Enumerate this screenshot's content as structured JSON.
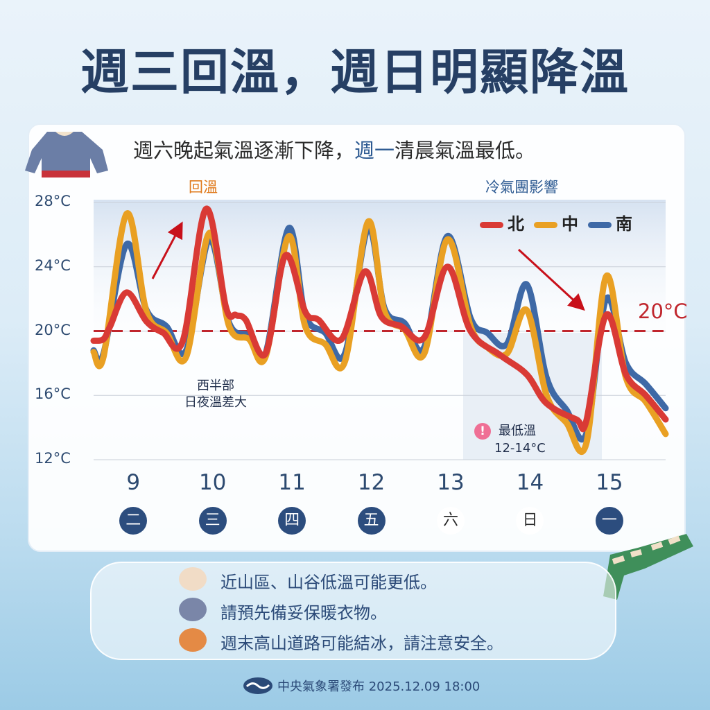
{
  "title": "週三回溫，週日明顯降溫",
  "subtitle": {
    "part1": "週六晚起氣溫逐漸下降，",
    "highlight": "週一",
    "part2": "清晨氣溫最低。"
  },
  "tags": {
    "warm": "回溫",
    "cold": "冷氣團影響"
  },
  "notes": {
    "west_line1": "西半部",
    "west_line2": "日夜溫差大",
    "low_title": "最低溫",
    "low_range": "12-14°C",
    "warn_symbol": "!"
  },
  "tips": [
    {
      "icon": "cup-icon",
      "text": "近山區、山谷低溫可能更低。"
    },
    {
      "icon": "beanie-icon",
      "text": "請預先備妥保暖衣物。"
    },
    {
      "icon": "mittens-icon",
      "text": "週末高山道路可能結冰，請注意安全。"
    }
  ],
  "footer": {
    "text": "中央氣象署發布 2025.12.09 18:00"
  },
  "colors": {
    "north": "#d93a35",
    "central": "#e9a023",
    "south": "#3e69a6",
    "reference": "#c0262d",
    "title": "#263f64"
  },
  "chart_data": {
    "type": "line",
    "ylim": [
      12,
      28
    ],
    "yticks": [
      "28°C",
      "24°C",
      "20°C",
      "16°C",
      "12°C"
    ],
    "ytick_values": [
      28,
      24,
      20,
      16,
      12
    ],
    "xlim": [
      "12/09 00:00",
      "12/16 05:00"
    ],
    "x_tick_labels": [
      {
        "day": "9",
        "weekday": "二",
        "style": "dark"
      },
      {
        "day": "10",
        "weekday": "三",
        "style": "dark"
      },
      {
        "day": "11",
        "weekday": "四",
        "style": "dark"
      },
      {
        "day": "12",
        "weekday": "五",
        "style": "dark"
      },
      {
        "day": "13",
        "weekday": "六",
        "style": "light"
      },
      {
        "day": "14",
        "weekday": "日",
        "style": "light"
      },
      {
        "day": "15",
        "weekday": "一",
        "style": "dark"
      }
    ],
    "reference_line": {
      "value": 20,
      "label": "20°C"
    },
    "legend": "top-right",
    "series": [
      {
        "name": "北",
        "color": "#d93a35",
        "points": [
          [
            "12/09 00:00",
            19.4
          ],
          [
            "12/09 03:00",
            19.5
          ],
          [
            "12/09 05:00",
            20.3
          ],
          [
            "12/09 10:00",
            22.4
          ],
          [
            "12/09 16:00",
            20.6
          ],
          [
            "12/09 21:00",
            19.9
          ],
          [
            "12/10 03:00",
            19.4
          ],
          [
            "12/10 10:00",
            27.6
          ],
          [
            "12/10 16:00",
            21.5
          ],
          [
            "12/10 19:00",
            21.0
          ],
          [
            "12/10 22:00",
            20.7
          ],
          [
            "12/11 04:00",
            18.6
          ],
          [
            "12/11 10:00",
            24.7
          ],
          [
            "12/11 16:00",
            21.2
          ],
          [
            "12/11 20:00",
            20.7
          ],
          [
            "12/12 03:00",
            19.5
          ],
          [
            "12/12 10:00",
            23.7
          ],
          [
            "12/12 15:00",
            20.9
          ],
          [
            "12/12 21:00",
            20.3
          ],
          [
            "12/13 04:00",
            19.6
          ],
          [
            "12/13 11:00",
            24.0
          ],
          [
            "12/13 18:00",
            20.0
          ],
          [
            "12/14 03:00",
            18.5
          ],
          [
            "12/14 11:00",
            17.3
          ],
          [
            "12/14 17:00",
            15.5
          ],
          [
            "12/15 02:00",
            14.5
          ],
          [
            "12/15 05:00",
            14.4
          ],
          [
            "12/15 11:00",
            21.0
          ],
          [
            "12/15 17:00",
            17.3
          ],
          [
            "12/15 23:00",
            16.0
          ],
          [
            "12/16 05:00",
            14.5
          ]
        ]
      },
      {
        "name": "中",
        "color": "#e9a023",
        "points": [
          [
            "12/09 00:00",
            18.7
          ],
          [
            "12/09 03:00",
            18.4
          ],
          [
            "12/09 10:00",
            27.3
          ],
          [
            "12/09 16:00",
            21.2
          ],
          [
            "12/09 22:00",
            19.9
          ],
          [
            "12/10 04:00",
            18.4
          ],
          [
            "12/10 11:00",
            26.1
          ],
          [
            "12/10 17:00",
            20.3
          ],
          [
            "12/10 23:00",
            19.5
          ],
          [
            "12/11 04:00",
            18.4
          ],
          [
            "12/11 11:00",
            25.9
          ],
          [
            "12/11 16:00",
            20.3
          ],
          [
            "12/11 22:00",
            19.2
          ],
          [
            "12/12 04:00",
            18.1
          ],
          [
            "12/12 11:00",
            26.8
          ],
          [
            "12/12 16:00",
            21.2
          ],
          [
            "12/12 22:00",
            20.1
          ],
          [
            "12/13 04:00",
            18.6
          ],
          [
            "12/13 11:00",
            25.7
          ],
          [
            "12/13 18:00",
            20.3
          ],
          [
            "12/13 23:00",
            19.0
          ],
          [
            "12/14 05:00",
            18.6
          ],
          [
            "12/14 11:00",
            21.3
          ],
          [
            "12/14 17:00",
            16.0
          ],
          [
            "12/14 23:00",
            14.3
          ],
          [
            "12/15 05:00",
            13.0
          ],
          [
            "12/15 11:00",
            23.4
          ],
          [
            "12/15 17:00",
            17.1
          ],
          [
            "12/15 23:00",
            15.6
          ],
          [
            "12/16 05:00",
            13.6
          ]
        ]
      },
      {
        "name": "南",
        "color": "#3e69a6",
        "points": [
          [
            "12/09 00:00",
            18.8
          ],
          [
            "12/09 03:00",
            18.6
          ],
          [
            "12/09 10:00",
            25.4
          ],
          [
            "12/09 16:00",
            21.3
          ],
          [
            "12/09 22:00",
            20.3
          ],
          [
            "12/10 04:00",
            18.8
          ],
          [
            "12/10 11:00",
            25.7
          ],
          [
            "12/10 17:00",
            20.5
          ],
          [
            "12/10 23:00",
            19.7
          ],
          [
            "12/11 04:00",
            18.6
          ],
          [
            "12/11 11:00",
            26.4
          ],
          [
            "12/11 16:00",
            21.0
          ],
          [
            "12/11 22:00",
            19.9
          ],
          [
            "12/12 04:00",
            18.6
          ],
          [
            "12/12 11:00",
            26.4
          ],
          [
            "12/12 16:00",
            21.4
          ],
          [
            "12/12 22:00",
            20.5
          ],
          [
            "12/13 04:00",
            19.0
          ],
          [
            "12/13 11:00",
            25.9
          ],
          [
            "12/13 18:00",
            20.8
          ],
          [
            "12/13 23:00",
            19.9
          ],
          [
            "12/14 05:00",
            19.2
          ],
          [
            "12/14 11:00",
            22.9
          ],
          [
            "12/14 17:00",
            17.1
          ],
          [
            "12/14 23:00",
            15.1
          ],
          [
            "12/15 05:00",
            13.6
          ],
          [
            "12/15 11:00",
            22.0
          ],
          [
            "12/15 17:00",
            18.0
          ],
          [
            "12/15 23:00",
            16.7
          ],
          [
            "12/16 05:00",
            15.2
          ]
        ]
      }
    ]
  }
}
